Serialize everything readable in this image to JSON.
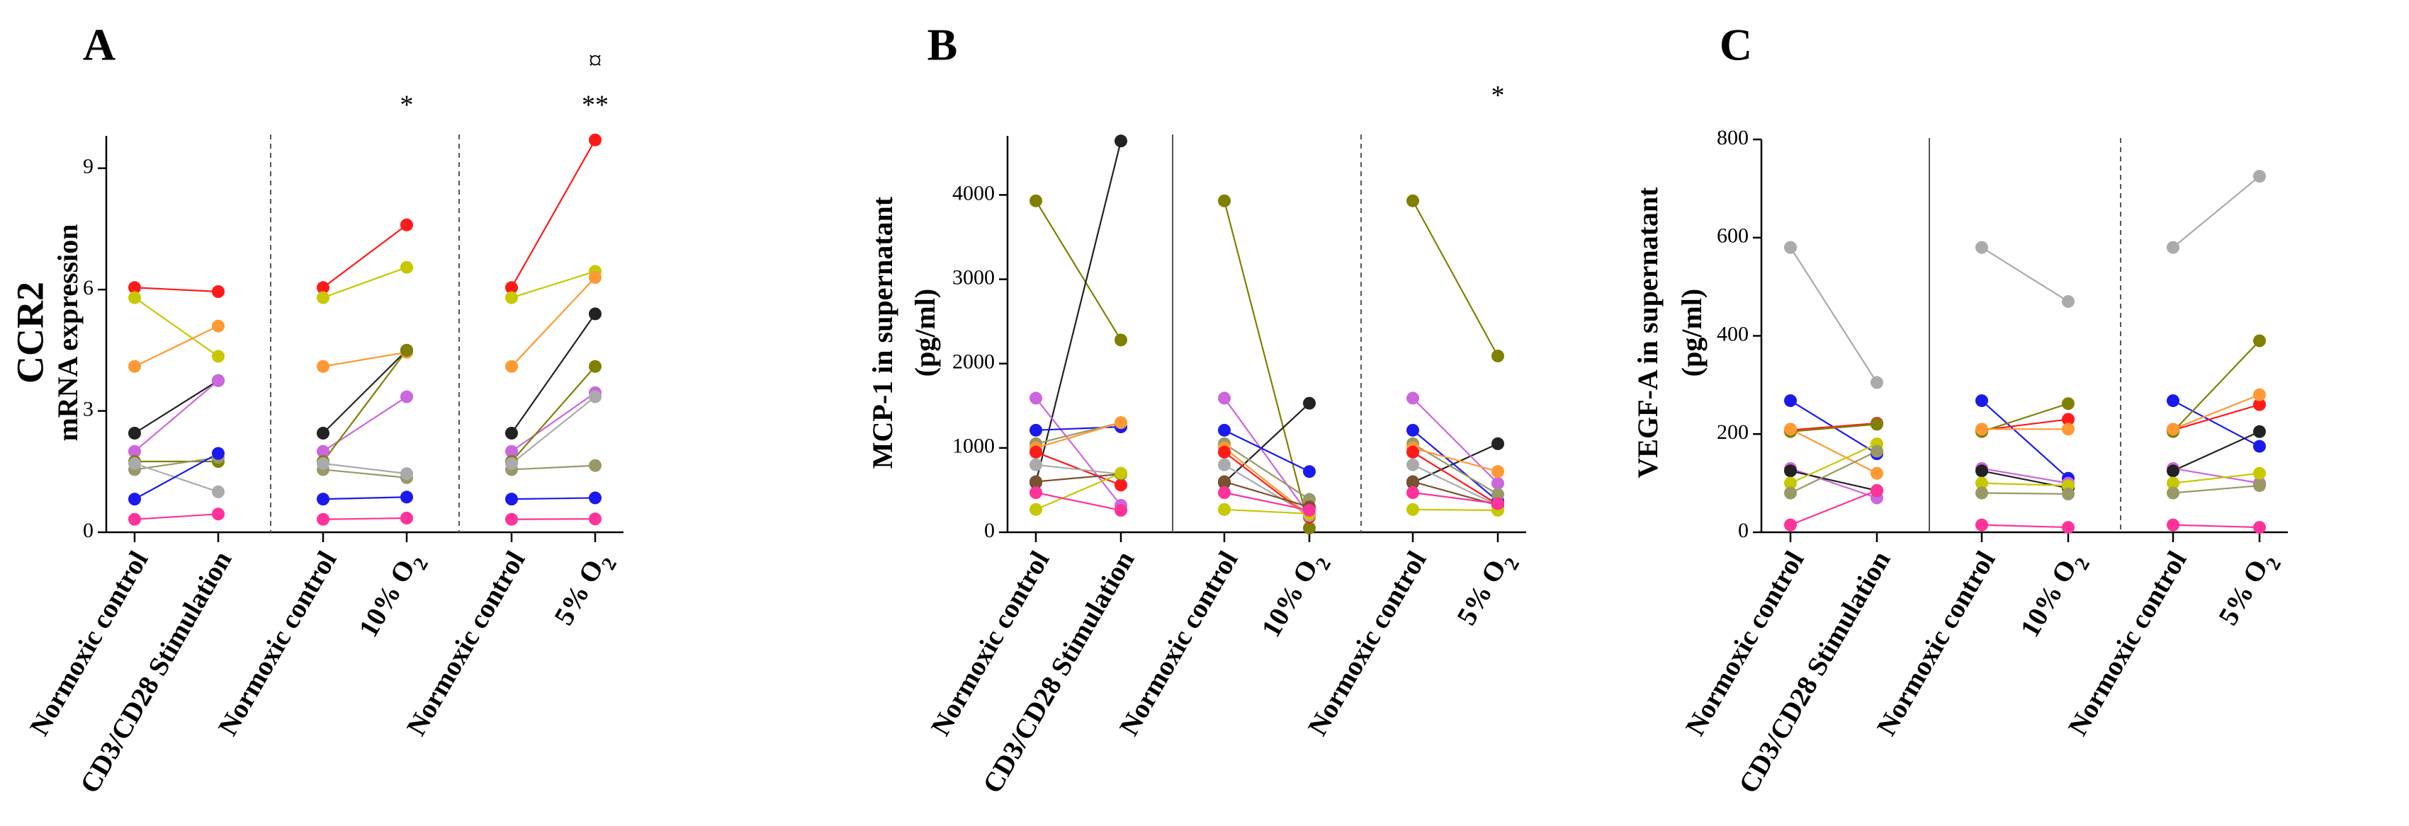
{
  "chart_data": [
    {
      "type": "line",
      "panel": "A",
      "title": "",
      "ylabel_line1": "CCR2",
      "ylabel_line2": "mRNA expression",
      "ylim": [
        0,
        9.8
      ],
      "yticks": [
        0,
        3,
        6,
        9
      ],
      "categories": [
        "Normoxic control",
        "CD3/CD28 Stimulation",
        "Normoxic control",
        "10% O2",
        "Normoxic control",
        "5% O2"
      ],
      "separators": [
        {
          "after": 1,
          "style": "dashed"
        },
        {
          "after": 3,
          "style": "dashed"
        }
      ],
      "annotations": [
        {
          "category": 3,
          "text": "*",
          "value_anchor": 10.5
        },
        {
          "category": 5,
          "text": "**",
          "value_anchor": 10.5
        },
        {
          "category": 5,
          "text": "¤",
          "value_anchor": 11.6
        }
      ],
      "series": [
        {
          "color": "#ff1a1a",
          "values": [
            6.05,
            5.95,
            6.05,
            7.6,
            6.05,
            9.7
          ]
        },
        {
          "color": "#c8c800",
          "values": [
            5.8,
            4.35,
            5.8,
            6.55,
            5.8,
            6.45
          ]
        },
        {
          "color": "#ff9933",
          "values": [
            4.1,
            5.1,
            4.1,
            4.45,
            4.1,
            6.3
          ]
        },
        {
          "color": "#222222",
          "values": [
            2.45,
            3.75,
            2.45,
            4.5,
            2.45,
            5.4
          ]
        },
        {
          "color": "#cc66dd",
          "values": [
            2.0,
            3.75,
            2.0,
            3.35,
            2.0,
            3.45
          ]
        },
        {
          "color": "#808000",
          "values": [
            1.75,
            1.75,
            1.75,
            4.5,
            1.75,
            4.1
          ]
        },
        {
          "color": "#999966",
          "values": [
            1.55,
            1.85,
            1.55,
            1.35,
            1.55,
            1.65
          ]
        },
        {
          "color": "#aaaaaa",
          "values": [
            1.7,
            1.0,
            1.7,
            1.45,
            1.7,
            3.35
          ]
        },
        {
          "color": "#1a1aee",
          "values": [
            0.82,
            1.95,
            0.82,
            0.87,
            0.82,
            0.85
          ]
        },
        {
          "color": "#ff3399",
          "values": [
            0.32,
            0.45,
            0.32,
            0.35,
            0.32,
            0.33
          ]
        }
      ]
    },
    {
      "type": "line",
      "panel": "B",
      "title": "",
      "ylabel_line1": "MCP-1 in supernatant",
      "ylabel_line2": "(pg/ml)",
      "ylim": [
        0,
        4700
      ],
      "yticks": [
        0,
        1000,
        2000,
        3000,
        4000
      ],
      "categories": [
        "Normoxic control",
        "CD3/CD28 Stimulation",
        "Normoxic control",
        "10% O2",
        "Normoxic control",
        "5% O2"
      ],
      "separators": [
        {
          "after": 1,
          "style": "solid"
        },
        {
          "after": 3,
          "style": "dashed"
        }
      ],
      "annotations": [
        {
          "category": 5,
          "text": "*",
          "value_anchor": 5150
        }
      ],
      "series": [
        {
          "color": "#808000",
          "values": [
            3930,
            2280,
            3930,
            50,
            3930,
            2090
          ]
        },
        {
          "color": "#222222",
          "values": [
            590,
            4640,
            590,
            1530,
            590,
            1050
          ]
        },
        {
          "color": "#cc66dd",
          "values": [
            1590,
            320,
            1590,
            200,
            1590,
            580
          ]
        },
        {
          "color": "#1a1aee",
          "values": [
            1210,
            1250,
            1210,
            720,
            1210,
            370
          ]
        },
        {
          "color": "#999966",
          "values": [
            1050,
            1300,
            1050,
            390,
            1050,
            450
          ]
        },
        {
          "color": "#ff9933",
          "values": [
            1000,
            1300,
            1000,
            200,
            1000,
            720
          ]
        },
        {
          "color": "#ff1a1a",
          "values": [
            950,
            560,
            950,
            180,
            950,
            330
          ]
        },
        {
          "color": "#aaaaaa",
          "values": [
            800,
            690,
            800,
            200,
            800,
            320
          ]
        },
        {
          "color": "#7a5230",
          "values": [
            600,
            690,
            600,
            300,
            600,
            320
          ]
        },
        {
          "color": "#c8c800",
          "values": [
            270,
            700,
            270,
            220,
            270,
            260
          ]
        },
        {
          "color": "#ff3399",
          "values": [
            470,
            260,
            470,
            260,
            470,
            340
          ]
        }
      ]
    },
    {
      "type": "line",
      "panel": "C",
      "title": "",
      "ylabel_line1": "VEGF-A in supernatant",
      "ylabel_line2": "(pg/ml)",
      "ylim": [
        0,
        800
      ],
      "yticks": [
        0,
        200,
        400,
        600,
        800
      ],
      "categories": [
        "Normoxic control",
        "CD3/CD28 Stimulation",
        "Normoxic control",
        "10% O2",
        "Normoxic control",
        "5% O2"
      ],
      "separators": [
        {
          "after": 1,
          "style": "solid"
        },
        {
          "after": 3,
          "style": "dashed"
        }
      ],
      "annotations": [],
      "series": [
        {
          "color": "#aaaaaa",
          "values": [
            580,
            305,
            580,
            470,
            580,
            725
          ]
        },
        {
          "color": "#1a1aee",
          "values": [
            268,
            160,
            268,
            110,
            268,
            175
          ]
        },
        {
          "color": "#ff1a1a",
          "values": [
            208,
            222,
            208,
            230,
            208,
            260
          ]
        },
        {
          "color": "#808000",
          "values": [
            205,
            220,
            205,
            262,
            205,
            390
          ]
        },
        {
          "color": "#ff9933",
          "values": [
            210,
            120,
            210,
            210,
            210,
            280
          ]
        },
        {
          "color": "#cc66dd",
          "values": [
            130,
            70,
            130,
            100,
            130,
            100
          ]
        },
        {
          "color": "#222222",
          "values": [
            125,
            85,
            125,
            90,
            125,
            205
          ]
        },
        {
          "color": "#c8c800",
          "values": [
            100,
            180,
            100,
            95,
            100,
            120
          ]
        },
        {
          "color": "#999966",
          "values": [
            80,
            165,
            80,
            78,
            80,
            95
          ]
        },
        {
          "color": "#ff3399",
          "values": [
            15,
            85,
            15,
            10,
            15,
            10
          ]
        }
      ]
    }
  ]
}
